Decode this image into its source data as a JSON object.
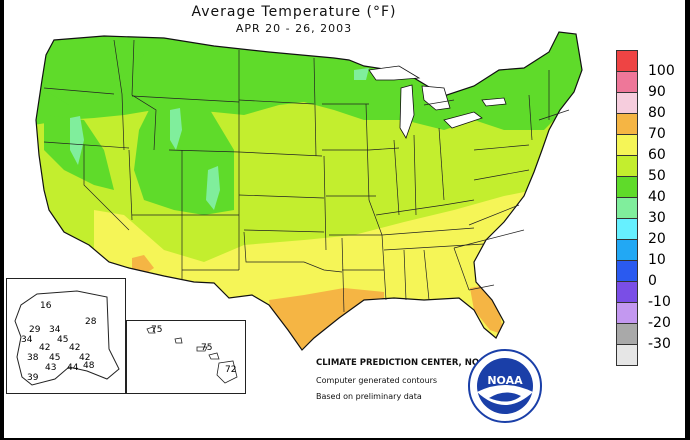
{
  "title": "Average Temperature (°F)",
  "subtitle": "APR 20 - 26, 2003",
  "legend": [
    {
      "label": "100",
      "color": "#ee4444"
    },
    {
      "label": "90",
      "color": "#ee7799"
    },
    {
      "label": "80",
      "color": "#f6cddd"
    },
    {
      "label": "70",
      "color": "#f5b544"
    },
    {
      "label": "60",
      "color": "#f5f557"
    },
    {
      "label": "50",
      "color": "#c3ee2e"
    },
    {
      "label": "40",
      "color": "#5fdb2a"
    },
    {
      "label": "30",
      "color": "#80ee9c"
    },
    {
      "label": "20",
      "color": "#66f0ff"
    },
    {
      "label": "10",
      "color": "#22a8f4"
    },
    {
      "label": "0",
      "color": "#2a5af0"
    },
    {
      "label": "-10",
      "color": "#7a4ee6"
    },
    {
      "label": "-20",
      "color": "#c398f0"
    },
    {
      "label": "-30",
      "color": "#a9a9a9"
    },
    {
      "label": "",
      "color": "#e6e6e6"
    }
  ],
  "alaska_values": [
    "16",
    "28",
    "29",
    "34",
    "34",
    "45",
    "42",
    "38",
    "42",
    "45",
    "42",
    "43",
    "44",
    "48",
    "39"
  ],
  "hawaii_values": [
    "75",
    "75",
    "72"
  ],
  "credits": {
    "line1": "CLIMATE PREDICTION CENTER, NOAA",
    "line2": "Computer generated contours",
    "line3": "Based on preliminary data"
  },
  "logo": {
    "text": "NOAA"
  }
}
